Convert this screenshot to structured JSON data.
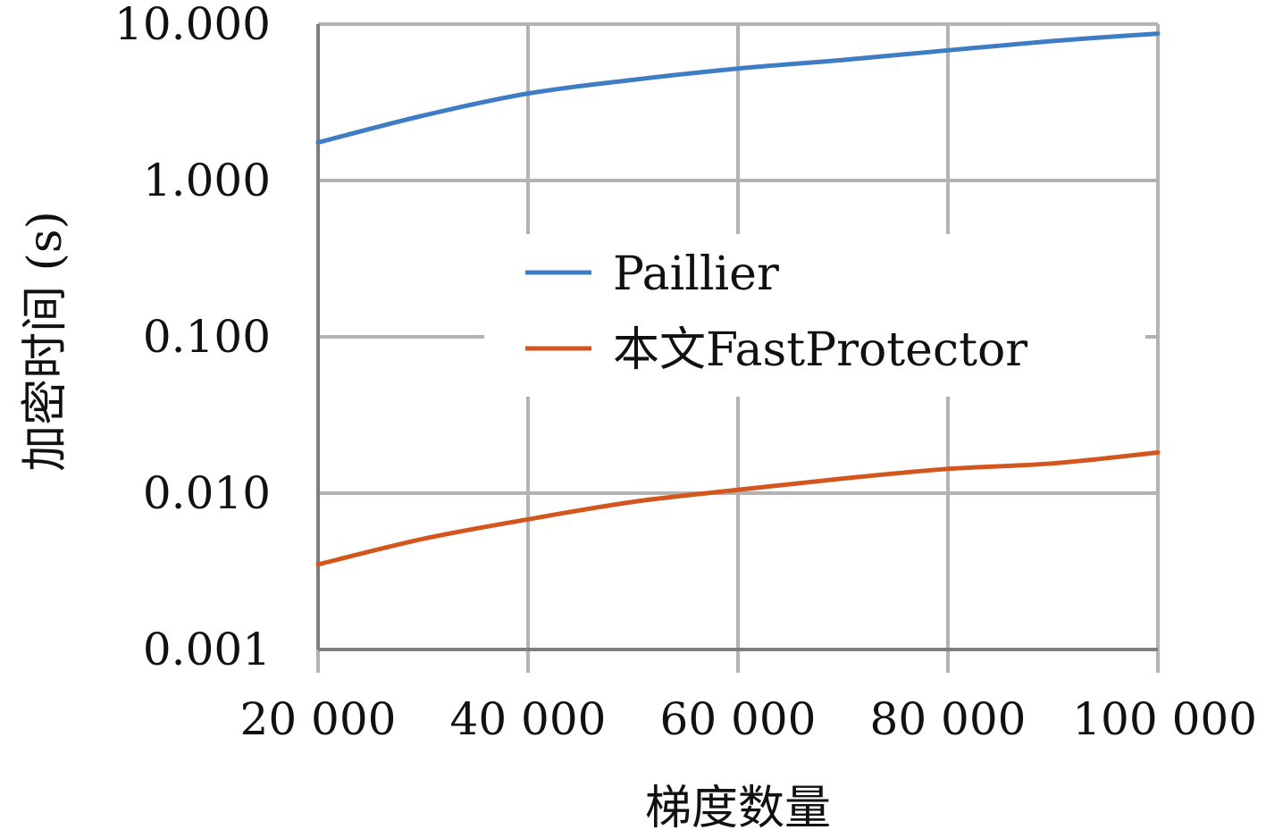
{
  "chart_data": {
    "type": "line",
    "title": "",
    "xlabel": "梯度数量",
    "ylabel": "加密时间 (s)",
    "x": [
      20000,
      30000,
      40000,
      50000,
      60000,
      70000,
      80000,
      90000,
      100000
    ],
    "x_tick_labels": [
      "20 000",
      "40 000",
      "60 000",
      "80 000",
      "100 000"
    ],
    "x_ticks": [
      20000,
      40000,
      60000,
      80000,
      100000
    ],
    "xlim": [
      20000,
      100000
    ],
    "y_scale": "log",
    "ylim": [
      0.001,
      10
    ],
    "y_ticks": [
      0.001,
      0.01,
      0.1,
      1,
      10
    ],
    "y_tick_labels": [
      "0.001",
      "0.010",
      "0.100",
      "1.000",
      "10.000"
    ],
    "grid": true,
    "legend": {
      "placement": "center",
      "entries": [
        "Paillier",
        "本文FastProtector"
      ]
    },
    "series": [
      {
        "name": "Paillier",
        "color": "#3e7cc4",
        "values": [
          1.75,
          2.6,
          3.6,
          4.4,
          5.2,
          5.9,
          6.8,
          7.8,
          8.7
        ]
      },
      {
        "name": "本文FastProtector",
        "color": "#d4561f",
        "values": [
          0.0035,
          0.0051,
          0.0068,
          0.0088,
          0.0105,
          0.0124,
          0.0143,
          0.0155,
          0.0182
        ]
      }
    ]
  }
}
